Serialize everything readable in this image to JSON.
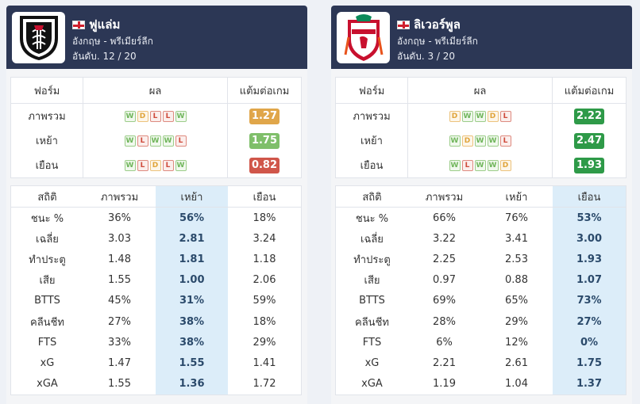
{
  "colors": {
    "header_bg": "#2c3755",
    "ppg_orange": "#e0a64a",
    "ppg_lightgreen": "#7fbf6a",
    "ppg_red": "#d0564a",
    "ppg_green": "#2e9a48",
    "highlight": "#dcedf9"
  },
  "teams": [
    {
      "name": "ฟูแล่ม",
      "league": "อังกฤษ - พรีเมียร์ลีก",
      "rank": "อันดับ. 12 / 20",
      "logo_icon": "fulham-crest-icon",
      "form_header": [
        "ฟอร์ม",
        "ผล",
        "แต้มต่อเกม"
      ],
      "form_rows": [
        {
          "label": "ภาพรวม",
          "results": [
            "W",
            "D",
            "L",
            "L",
            "W"
          ],
          "ppg": "1.27",
          "ppg_color": "#e0a64a"
        },
        {
          "label": "เหย้า",
          "results": [
            "W",
            "L",
            "W",
            "W",
            "L"
          ],
          "ppg": "1.75",
          "ppg_color": "#7fbf6a"
        },
        {
          "label": "เยือน",
          "results": [
            "W",
            "L",
            "D",
            "L",
            "W"
          ],
          "ppg": "0.82",
          "ppg_color": "#d0564a"
        }
      ],
      "stats_header": [
        "สถิติ",
        "ภาพรวม",
        "เหย้า",
        "เยือน"
      ],
      "highlight_col": 2,
      "stats_rows": [
        {
          "label": "ชนะ %",
          "values": [
            "36%",
            "56%",
            "18%"
          ]
        },
        {
          "label": "เฉลี่ย",
          "values": [
            "3.03",
            "2.81",
            "3.24"
          ]
        },
        {
          "label": "ทำประตู",
          "values": [
            "1.48",
            "1.81",
            "1.18"
          ]
        },
        {
          "label": "เสีย",
          "values": [
            "1.55",
            "1.00",
            "2.06"
          ]
        },
        {
          "label": "BTTS",
          "values": [
            "45%",
            "31%",
            "59%"
          ]
        },
        {
          "label": "คลีนชีท",
          "values": [
            "27%",
            "38%",
            "18%"
          ]
        },
        {
          "label": "FTS",
          "values": [
            "33%",
            "38%",
            "29%"
          ]
        },
        {
          "label": "xG",
          "values": [
            "1.47",
            "1.55",
            "1.41"
          ]
        },
        {
          "label": "xGA",
          "values": [
            "1.55",
            "1.36",
            "1.72"
          ]
        }
      ]
    },
    {
      "name": "ลิเวอร์พูล",
      "league": "อังกฤษ - พรีเมียร์ลีก",
      "rank": "อันดับ. 3 / 20",
      "logo_icon": "liverpool-crest-icon",
      "form_header": [
        "ฟอร์ม",
        "ผล",
        "แต้มต่อเกม"
      ],
      "form_rows": [
        {
          "label": "ภาพรวม",
          "results": [
            "D",
            "W",
            "W",
            "D",
            "L"
          ],
          "ppg": "2.22",
          "ppg_color": "#2e9a48"
        },
        {
          "label": "เหย้า",
          "results": [
            "W",
            "D",
            "W",
            "W",
            "L"
          ],
          "ppg": "2.47",
          "ppg_color": "#2e9a48"
        },
        {
          "label": "เยือน",
          "results": [
            "W",
            "L",
            "W",
            "W",
            "D"
          ],
          "ppg": "1.93",
          "ppg_color": "#2e9a48"
        }
      ],
      "stats_header": [
        "สถิติ",
        "ภาพรวม",
        "เหย้า",
        "เยือน"
      ],
      "highlight_col": 3,
      "stats_rows": [
        {
          "label": "ชนะ %",
          "values": [
            "66%",
            "76%",
            "53%"
          ]
        },
        {
          "label": "เฉลี่ย",
          "values": [
            "3.22",
            "3.41",
            "3.00"
          ]
        },
        {
          "label": "ทำประตู",
          "values": [
            "2.25",
            "2.53",
            "1.93"
          ]
        },
        {
          "label": "เสีย",
          "values": [
            "0.97",
            "0.88",
            "1.07"
          ]
        },
        {
          "label": "BTTS",
          "values": [
            "69%",
            "65%",
            "73%"
          ]
        },
        {
          "label": "คลีนชีท",
          "values": [
            "28%",
            "29%",
            "27%"
          ]
        },
        {
          "label": "FTS",
          "values": [
            "6%",
            "12%",
            "0%"
          ]
        },
        {
          "label": "xG",
          "values": [
            "2.21",
            "2.61",
            "1.75"
          ]
        },
        {
          "label": "xGA",
          "values": [
            "1.19",
            "1.04",
            "1.37"
          ]
        }
      ]
    }
  ]
}
